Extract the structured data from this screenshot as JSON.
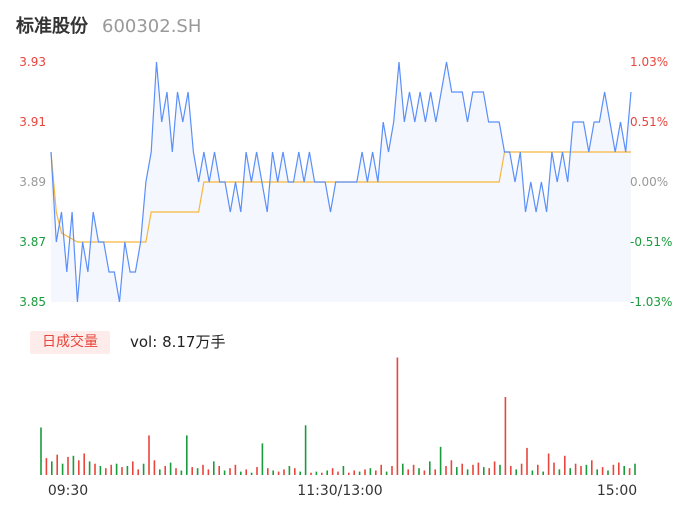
{
  "header": {
    "name": "标准股份",
    "code": "600302.SH"
  },
  "volume_panel": {
    "tag": "日成交量",
    "vol_label": "vol:",
    "vol_value": "8.17万手"
  },
  "colors": {
    "price_line": "#5b8ff9",
    "avg_line": "#f6b73c",
    "up": "#e8453c",
    "down": "#1a9b3c",
    "neutral": "#999999",
    "area_fill": "#f4f7fd"
  },
  "chart_data": [
    {
      "type": "line",
      "title": "",
      "ylim": [
        3.85,
        3.93
      ],
      "y_ticks_left": [
        "3.93",
        "3.91",
        "3.89",
        "3.87",
        "3.85"
      ],
      "y_ticks_right": [
        "1.03%",
        "0.51%",
        "0.00%",
        "-0.51%",
        "-1.03%"
      ],
      "prev_close": 3.89,
      "x_ticks": [
        "09:30",
        "11:30/13:00",
        "15:00"
      ],
      "series": [
        {
          "name": "price",
          "values": [
            3.9,
            3.87,
            3.88,
            3.86,
            3.88,
            3.85,
            3.87,
            3.86,
            3.88,
            3.87,
            3.87,
            3.86,
            3.86,
            3.85,
            3.87,
            3.86,
            3.86,
            3.87,
            3.89,
            3.9,
            3.93,
            3.91,
            3.92,
            3.9,
            3.92,
            3.91,
            3.92,
            3.9,
            3.89,
            3.9,
            3.89,
            3.9,
            3.89,
            3.89,
            3.88,
            3.89,
            3.88,
            3.9,
            3.89,
            3.9,
            3.89,
            3.88,
            3.9,
            3.89,
            3.9,
            3.89,
            3.89,
            3.9,
            3.89,
            3.9,
            3.89,
            3.89,
            3.89,
            3.88,
            3.89,
            3.89,
            3.89,
            3.89,
            3.89,
            3.9,
            3.89,
            3.9,
            3.89,
            3.91,
            3.9,
            3.91,
            3.93,
            3.91,
            3.92,
            3.91,
            3.92,
            3.91,
            3.92,
            3.91,
            3.92,
            3.93,
            3.92,
            3.92,
            3.92,
            3.91,
            3.92,
            3.92,
            3.92,
            3.91,
            3.91,
            3.91,
            3.9,
            3.9,
            3.89,
            3.9,
            3.88,
            3.89,
            3.88,
            3.89,
            3.88,
            3.9,
            3.89,
            3.9,
            3.89,
            3.91,
            3.91,
            3.91,
            3.9,
            3.91,
            3.91,
            3.92,
            3.91,
            3.9,
            3.91,
            3.9,
            3.92
          ]
        },
        {
          "name": "avg",
          "values": [
            3.9,
            3.88,
            3.873,
            3.872,
            3.871,
            3.87,
            3.87,
            3.87,
            3.87,
            3.87,
            3.87,
            3.87,
            3.87,
            3.87,
            3.87,
            3.87,
            3.87,
            3.87,
            3.87,
            3.88,
            3.88,
            3.88,
            3.88,
            3.88,
            3.88,
            3.88,
            3.88,
            3.88,
            3.88,
            3.89,
            3.89,
            3.89,
            3.89,
            3.89,
            3.89,
            3.89,
            3.89,
            3.89,
            3.89,
            3.89,
            3.89,
            3.89,
            3.89,
            3.89,
            3.89,
            3.89,
            3.89,
            3.89,
            3.89,
            3.89,
            3.89,
            3.89,
            3.89,
            3.89,
            3.89,
            3.89,
            3.89,
            3.89,
            3.89,
            3.89,
            3.89,
            3.89,
            3.89,
            3.89,
            3.89,
            3.89,
            3.89,
            3.89,
            3.89,
            3.89,
            3.89,
            3.89,
            3.89,
            3.89,
            3.89,
            3.89,
            3.89,
            3.89,
            3.89,
            3.89,
            3.89,
            3.89,
            3.89,
            3.89,
            3.89,
            3.89,
            3.9,
            3.9,
            3.9,
            3.9,
            3.9,
            3.9,
            3.9,
            3.9,
            3.9,
            3.9,
            3.9,
            3.9,
            3.9,
            3.9,
            3.9,
            3.9,
            3.9,
            3.9,
            3.9,
            3.9,
            3.9,
            3.9,
            3.9,
            3.9,
            3.9
          ]
        }
      ]
    },
    {
      "type": "bar",
      "title": "",
      "ylim": [
        0,
        10
      ],
      "vol_values": [
        4.2,
        1.5,
        1.2,
        1.8,
        1.0,
        1.6,
        1.7,
        1.3,
        1.9,
        1.2,
        1.0,
        0.8,
        0.6,
        0.9,
        1.0,
        0.7,
        0.8,
        1.2,
        0.5,
        1.0,
        3.5,
        1.3,
        0.5,
        0.8,
        1.1,
        0.6,
        0.4,
        3.5,
        0.7,
        0.6,
        0.9,
        0.5,
        1.2,
        0.8,
        0.4,
        0.6,
        0.9,
        0.3,
        0.5,
        0.2,
        0.7,
        2.8,
        0.6,
        0.4,
        0.3,
        0.5,
        0.8,
        0.6,
        0.3,
        4.4,
        0.2,
        0.3,
        0.2,
        0.4,
        0.6,
        0.3,
        0.8,
        0.2,
        0.4,
        0.3,
        0.5,
        0.6,
        0.4,
        0.9,
        0.3,
        0.8,
        10.4,
        1.0,
        0.5,
        0.9,
        0.6,
        0.4,
        1.2,
        0.5,
        2.5,
        0.8,
        1.3,
        0.7,
        1.0,
        0.5,
        0.9,
        1.1,
        0.7,
        0.6,
        1.2,
        0.9,
        6.9,
        0.8,
        0.5,
        1.0,
        2.4,
        0.4,
        0.9,
        0.3,
        1.9,
        1.1,
        0.5,
        1.7,
        0.6,
        1.0,
        0.8,
        0.9,
        1.3,
        0.5,
        0.7,
        0.4,
        0.9,
        1.1,
        0.8,
        0.6,
        1.0
      ],
      "vol_dirs": [
        -1,
        1,
        -1,
        1,
        -1,
        1,
        -1,
        1,
        1,
        -1,
        1,
        -1,
        1,
        1,
        -1,
        1,
        -1,
        1,
        1,
        -1,
        1,
        1,
        -1,
        1,
        -1,
        1,
        -1,
        -1,
        1,
        -1,
        1,
        1,
        -1,
        1,
        -1,
        1,
        1,
        -1,
        1,
        -1,
        1,
        -1,
        1,
        -1,
        1,
        1,
        -1,
        1,
        -1,
        -1,
        1,
        -1,
        1,
        -1,
        1,
        1,
        -1,
        1,
        1,
        -1,
        1,
        -1,
        1,
        1,
        -1,
        1,
        1,
        -1,
        1,
        1,
        -1,
        1,
        -1,
        1,
        -1,
        1,
        1,
        -1,
        1,
        -1,
        1,
        1,
        -1,
        1,
        1,
        -1,
        1,
        1,
        -1,
        1,
        1,
        -1,
        1,
        -1,
        1,
        1,
        -1,
        1,
        -1,
        1,
        1,
        -1,
        1,
        -1,
        1,
        -1,
        1,
        1,
        -1,
        1,
        -1
      ]
    }
  ]
}
